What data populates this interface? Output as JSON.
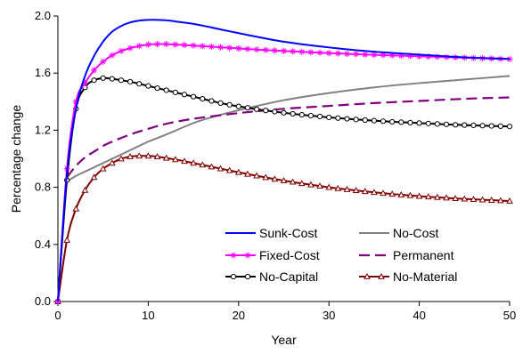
{
  "chart_data": {
    "type": "line",
    "xlabel": "Year",
    "ylabel": "Percentage change",
    "xlim": [
      0,
      50
    ],
    "ylim": [
      0,
      2.0
    ],
    "xticks": [
      0,
      10,
      20,
      30,
      40,
      50
    ],
    "yticks": [
      0.0,
      0.4,
      0.8,
      1.2,
      1.6,
      2.0
    ],
    "xtick_labels": [
      "0",
      "10",
      "20",
      "30",
      "40",
      "50"
    ],
    "ytick_labels": [
      "0.0",
      "0.4",
      "0.8",
      "1.2",
      "1.6",
      "2.0"
    ],
    "grid": false,
    "legend_position": "bottom-right",
    "series": [
      {
        "name": "Sunk-Cost",
        "color": "#0000FF",
        "dash": "solid",
        "marker": "none",
        "x": [
          0,
          1,
          2,
          3,
          4,
          5,
          6,
          7,
          8,
          9,
          10,
          11,
          12,
          13,
          15,
          17,
          20,
          25,
          30,
          35,
          40,
          45,
          50
        ],
        "y": [
          0,
          0.9,
          1.35,
          1.58,
          1.72,
          1.82,
          1.89,
          1.93,
          1.955,
          1.968,
          1.973,
          1.973,
          1.97,
          1.962,
          1.945,
          1.92,
          1.88,
          1.82,
          1.78,
          1.75,
          1.73,
          1.71,
          1.7
        ]
      },
      {
        "name": "No-Cost",
        "color": "#808080",
        "dash": "solid",
        "marker": "none",
        "x": [
          1,
          2,
          3,
          4,
          5,
          6,
          8,
          10,
          12,
          15,
          17,
          20,
          25,
          30,
          35,
          40,
          45,
          50
        ],
        "y": [
          0.84,
          0.88,
          0.91,
          0.94,
          0.97,
          1.0,
          1.06,
          1.12,
          1.17,
          1.25,
          1.29,
          1.34,
          1.41,
          1.46,
          1.5,
          1.53,
          1.555,
          1.58
        ]
      },
      {
        "name": "Fixed-Cost",
        "color": "#FF00FF",
        "dash": "solid",
        "marker": "asterisk",
        "x": [
          0,
          1,
          2,
          3,
          4,
          5,
          6,
          7,
          8,
          9,
          10,
          11,
          12,
          13,
          14,
          15,
          16,
          17,
          18,
          19,
          20,
          21,
          22,
          23,
          24,
          25,
          26,
          27,
          28,
          29,
          30,
          31,
          32,
          33,
          34,
          35,
          36,
          37,
          38,
          39,
          40,
          41,
          42,
          43,
          44,
          45,
          46,
          47,
          48,
          49,
          50
        ],
        "y": [
          0,
          0.93,
          1.4,
          1.53,
          1.62,
          1.68,
          1.725,
          1.755,
          1.775,
          1.79,
          1.8,
          1.803,
          1.803,
          1.8,
          1.797,
          1.793,
          1.789,
          1.785,
          1.781,
          1.777,
          1.773,
          1.769,
          1.765,
          1.762,
          1.758,
          1.755,
          1.752,
          1.749,
          1.746,
          1.743,
          1.74,
          1.738,
          1.735,
          1.733,
          1.73,
          1.728,
          1.726,
          1.724,
          1.722,
          1.72,
          1.718,
          1.716,
          1.714,
          1.712,
          1.71,
          1.708,
          1.706,
          1.704,
          1.702,
          1.7,
          1.698
        ]
      },
      {
        "name": "Permanent",
        "color": "#800080",
        "dash": "dashed",
        "marker": "none",
        "x": [
          1,
          2,
          3,
          4,
          5,
          6,
          8,
          10,
          12,
          15,
          20,
          25,
          30,
          35,
          40,
          45,
          50
        ],
        "y": [
          0.87,
          0.95,
          1.01,
          1.05,
          1.09,
          1.12,
          1.17,
          1.21,
          1.245,
          1.28,
          1.32,
          1.35,
          1.37,
          1.39,
          1.405,
          1.42,
          1.43
        ]
      },
      {
        "name": "No-Capital",
        "color": "#000000",
        "dash": "solid",
        "marker": "circle",
        "x": [
          0,
          1,
          2,
          3,
          4,
          5,
          6,
          7,
          8,
          9,
          10,
          11,
          12,
          13,
          14,
          15,
          16,
          17,
          18,
          19,
          20,
          21,
          22,
          23,
          24,
          25,
          26,
          27,
          28,
          29,
          30,
          31,
          32,
          33,
          34,
          35,
          36,
          37,
          38,
          39,
          40,
          41,
          42,
          43,
          44,
          45,
          46,
          47,
          48,
          49,
          50
        ],
        "y": [
          0,
          0.85,
          1.35,
          1.5,
          1.55,
          1.565,
          1.56,
          1.55,
          1.54,
          1.525,
          1.51,
          1.495,
          1.48,
          1.465,
          1.45,
          1.435,
          1.42,
          1.405,
          1.39,
          1.378,
          1.367,
          1.357,
          1.347,
          1.338,
          1.33,
          1.322,
          1.315,
          1.308,
          1.302,
          1.296,
          1.29,
          1.285,
          1.28,
          1.275,
          1.271,
          1.267,
          1.263,
          1.259,
          1.256,
          1.253,
          1.25,
          1.247,
          1.244,
          1.241,
          1.238,
          1.236,
          1.234,
          1.232,
          1.23,
          1.228,
          1.226
        ]
      },
      {
        "name": "No-Material",
        "color": "#800000",
        "dash": "solid",
        "marker": "triangle",
        "x": [
          0,
          1,
          2,
          3,
          4,
          5,
          6,
          7,
          8,
          9,
          10,
          11,
          12,
          13,
          14,
          15,
          16,
          17,
          18,
          19,
          20,
          21,
          22,
          23,
          24,
          25,
          26,
          27,
          28,
          29,
          30,
          31,
          32,
          33,
          34,
          35,
          36,
          37,
          38,
          39,
          40,
          41,
          42,
          43,
          44,
          45,
          46,
          47,
          48,
          49,
          50
        ],
        "y": [
          0,
          0.43,
          0.65,
          0.78,
          0.87,
          0.93,
          0.97,
          1.0,
          1.015,
          1.02,
          1.02,
          1.015,
          1.005,
          0.995,
          0.983,
          0.97,
          0.957,
          0.944,
          0.931,
          0.918,
          0.905,
          0.893,
          0.881,
          0.869,
          0.858,
          0.847,
          0.837,
          0.827,
          0.818,
          0.809,
          0.8,
          0.792,
          0.785,
          0.778,
          0.771,
          0.765,
          0.759,
          0.753,
          0.748,
          0.743,
          0.738,
          0.734,
          0.73,
          0.726,
          0.722,
          0.719,
          0.716,
          0.713,
          0.71,
          0.707,
          0.704
        ]
      }
    ],
    "legend_order": [
      "Sunk-Cost",
      "No-Cost",
      "Fixed-Cost",
      "Permanent",
      "No-Capital",
      "No-Material"
    ]
  }
}
